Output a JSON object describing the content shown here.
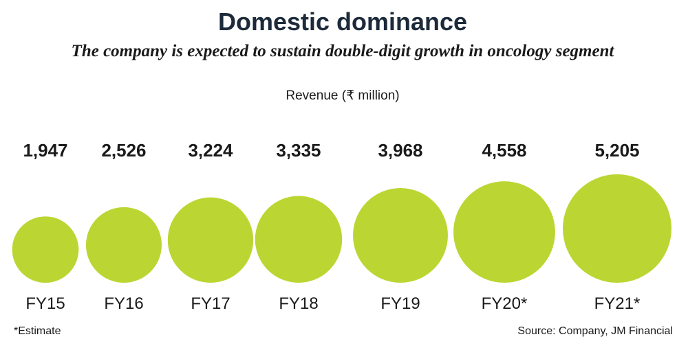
{
  "chart_data": {
    "type": "bubble",
    "title": "Domestic dominance",
    "subtitle": "The company is expected to sustain double-digit growth in oncology segment",
    "unit_label": "Revenue (₹ million)",
    "categories": [
      "FY15",
      "FY16",
      "FY17",
      "FY18",
      "FY19",
      "FY20*",
      "FY21*"
    ],
    "values": [
      1947,
      2526,
      3224,
      3335,
      3968,
      4558,
      5205
    ],
    "value_labels": [
      "1,947",
      "2,526",
      "3,224",
      "3,335",
      "3,968",
      "4,558",
      "5,205"
    ],
    "bubble_color": "#bbd632",
    "footnote": "*Estimate",
    "source": "Source: Company, JM Financial"
  }
}
